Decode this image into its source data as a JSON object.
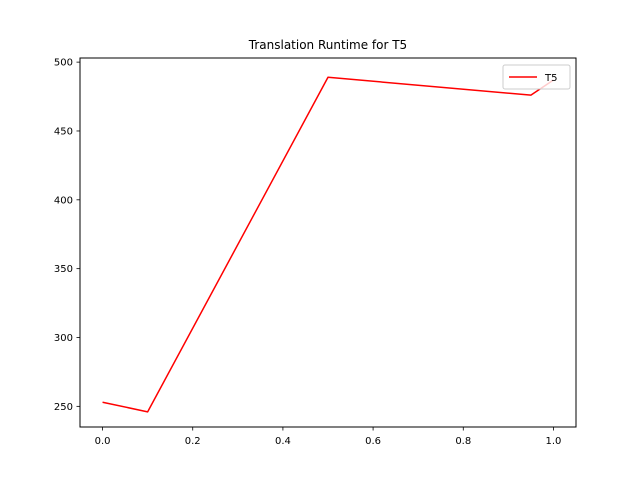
{
  "chart_data": {
    "type": "line",
    "title": "Translation Runtime for T5",
    "xlabel": "",
    "ylabel": "",
    "xlim": [
      -0.05,
      1.05
    ],
    "ylim": [
      235,
      503
    ],
    "xticks": [
      0.0,
      0.2,
      0.4,
      0.6,
      0.8,
      1.0
    ],
    "xtick_labels": [
      "0.0",
      "0.2",
      "0.4",
      "0.6",
      "0.8",
      "1.0"
    ],
    "yticks": [
      250,
      300,
      350,
      400,
      450,
      500
    ],
    "ytick_labels": [
      "250",
      "300",
      "350",
      "400",
      "450",
      "500"
    ],
    "grid": false,
    "legend_position": "upper right",
    "series": [
      {
        "name": "T5",
        "color": "#ff0000",
        "x": [
          0.0,
          0.1,
          0.5,
          0.95,
          1.0
        ],
        "y": [
          253,
          246,
          489,
          476,
          487
        ]
      }
    ]
  }
}
